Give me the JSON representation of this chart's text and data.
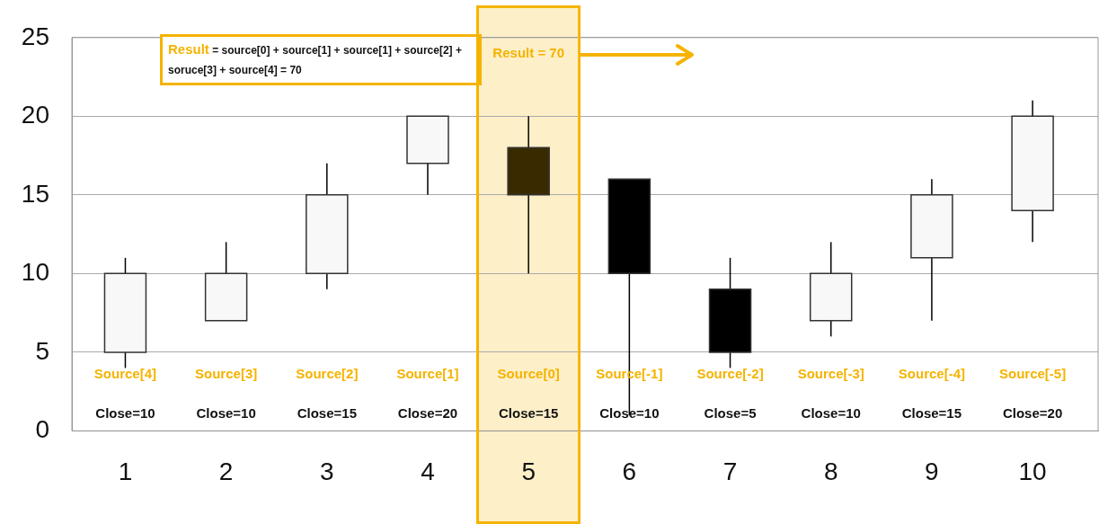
{
  "chart_data": {
    "type": "candlestick",
    "x": [
      1,
      2,
      3,
      4,
      5,
      6,
      7,
      8,
      9,
      10
    ],
    "ohlc": [
      [
        5,
        11,
        4,
        10
      ],
      [
        7,
        12,
        7,
        10
      ],
      [
        10,
        17,
        9,
        15
      ],
      [
        17,
        20,
        15,
        20
      ],
      [
        18,
        20,
        10,
        15
      ],
      [
        16,
        16,
        1,
        10
      ],
      [
        9,
        11,
        4,
        5
      ],
      [
        7,
        12,
        6,
        10
      ],
      [
        11,
        16,
        7,
        15
      ],
      [
        14,
        21,
        12,
        20
      ]
    ],
    "colors": [
      "#f8f8f8",
      "#f8f8f8",
      "#f8f8f8",
      "#f8f8f8",
      "#3a2a00",
      "#000000",
      "#000000",
      "#f8f8f8",
      "#f8f8f8",
      "#f8f8f8"
    ],
    "xlim": [
      0.47,
      10.65
    ],
    "xticks": [
      1,
      2,
      3,
      4,
      5,
      6,
      7,
      8,
      9,
      10
    ],
    "ylim": [
      0,
      25
    ],
    "yticks": [
      0,
      5,
      10,
      15,
      20,
      25
    ],
    "grid": "y",
    "bands": [
      {
        "axis": "x",
        "from": 4.5,
        "to": 5.5,
        "label": "Result = 70",
        "color": "#fdefc8"
      }
    ],
    "annotations": [
      "Result = source[0] + source[1] + source[1] + source[2] + soruce[3] + source[4] = 70",
      "Source[4]",
      "Source[3]",
      "Source[2]",
      "Source[1]",
      "Source[0]",
      "Source[-1]",
      "Source[-2]",
      "Source[-3]",
      "Source[-4]",
      "Source[-5]",
      "Close=10",
      "Close=10",
      "Close=15",
      "Close=20",
      "Close=15",
      "Close=10",
      "Close=5",
      "Close=10",
      "Close=15",
      "Close=20"
    ]
  }
}
